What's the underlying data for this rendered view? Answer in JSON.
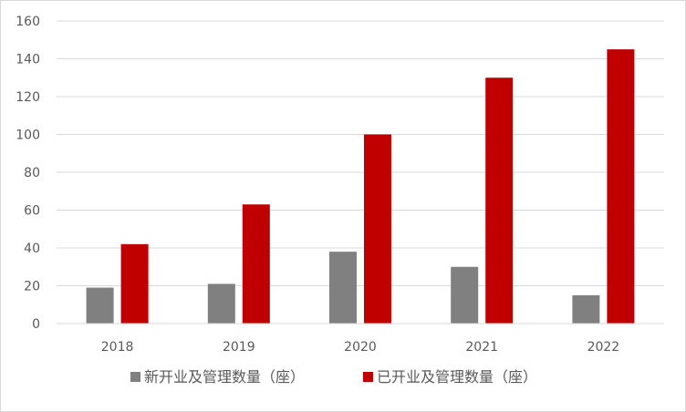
{
  "chart_data": {
    "type": "bar",
    "categories": [
      "2018",
      "2019",
      "2020",
      "2021",
      "2022"
    ],
    "series": [
      {
        "name": "新开业及管理数量（座）",
        "values": [
          19,
          21,
          38,
          30,
          15
        ],
        "color": "#808080"
      },
      {
        "name": "已开业及管理数量（座）",
        "values": [
          42,
          63,
          100,
          130,
          145
        ],
        "color": "#c00000"
      }
    ],
    "ylim": [
      0,
      160
    ],
    "yticks": [
      0,
      20,
      40,
      60,
      80,
      100,
      120,
      140,
      160
    ],
    "grid": true,
    "legend": "bottom"
  }
}
